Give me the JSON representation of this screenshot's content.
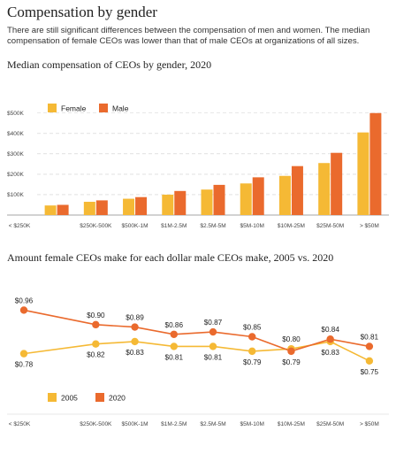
{
  "page": {
    "title": "Compensation by gender",
    "description": "There are still significant differences between the compensation of men and women. The median compensation of female CEOs was lower than that of male CEOs at organizations of all sizes."
  },
  "colors": {
    "female": "#f5b935",
    "male": "#ea6a2d",
    "grid": "#cfcfcf",
    "axis": "#888888"
  },
  "chart_data": [
    {
      "type": "bar",
      "title": "Median compensation of CEOs by gender, 2020",
      "categories": [
        "< $250K",
        "$250K-500K",
        "$500K-1M",
        "$1M-2.5M",
        "$2.5M-5M",
        "$5M-10M",
        "$10M-25M",
        "$25M-50M",
        "> $50M"
      ],
      "series": [
        {
          "name": "Female",
          "values": [
            47,
            65,
            80,
            100,
            125,
            155,
            192,
            255,
            405
          ]
        },
        {
          "name": "Male",
          "values": [
            50,
            72,
            88,
            118,
            148,
            185,
            240,
            305,
            500
          ]
        }
      ],
      "yticks": [
        "$100K",
        "$200K",
        "$300K",
        "$400K",
        "$500K"
      ],
      "ytick_values": [
        100,
        200,
        300,
        400,
        500
      ],
      "ylim": [
        0,
        525
      ],
      "grid": true,
      "legend": "top-left"
    },
    {
      "type": "line",
      "title": "Amount female CEOs make for each dollar male CEOs make, 2005 vs. 2020",
      "categories": [
        "< $250K",
        "$250K-500K",
        "$500K-1M",
        "$1M-2.5M",
        "$2.5M-5M",
        "$5M-10M",
        "$10M-25M",
        "$25M-50M",
        "> $50M"
      ],
      "series": [
        {
          "name": "2005",
          "values": [
            0.78,
            0.82,
            0.83,
            0.81,
            0.81,
            0.79,
            0.8,
            0.83,
            0.75
          ],
          "labels": [
            "$0.78",
            "$0.82",
            "$0.83",
            "$0.81",
            "$0.81",
            "$0.79",
            "$0.80",
            "$0.83",
            "$0.75"
          ]
        },
        {
          "name": "2020",
          "values": [
            0.96,
            0.9,
            0.89,
            0.86,
            0.87,
            0.85,
            0.79,
            0.84,
            0.81
          ],
          "labels": [
            "$0.96",
            "$0.90",
            "$0.89",
            "$0.86",
            "$0.87",
            "$0.85",
            "$0.79",
            "$0.84",
            "$0.81"
          ]
        }
      ],
      "ylim": [
        0.72,
        0.98
      ],
      "grid": false,
      "legend": "bottom-left"
    }
  ]
}
